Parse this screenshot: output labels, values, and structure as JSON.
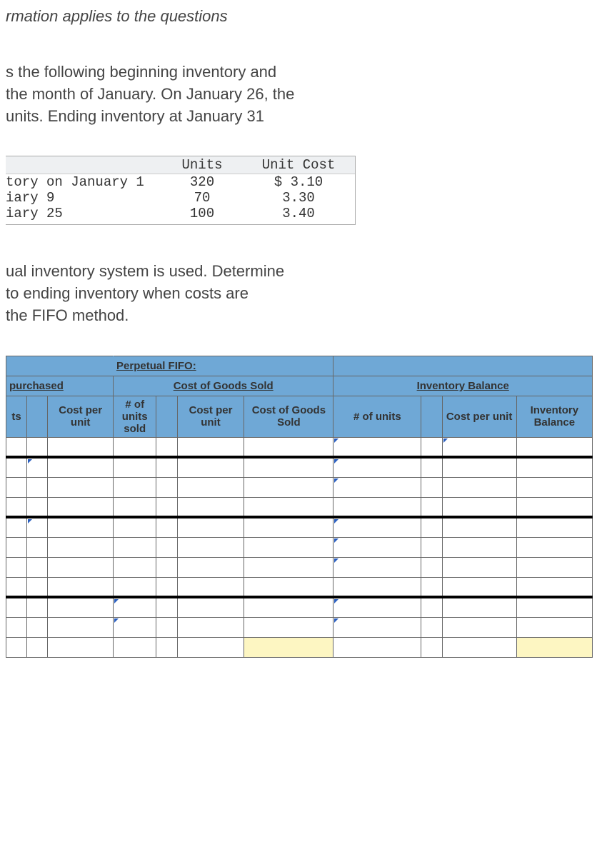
{
  "intro_italic": "rmation applies to the questions",
  "para1_line1": "s the following beginning inventory and",
  "para1_line2": "the month of January. On January 26, the",
  "para1_line3": "units. Ending inventory at January 31",
  "inventory_table": {
    "headers": {
      "units": "Units",
      "unit_cost": "Unit Cost"
    },
    "rows": [
      {
        "label": "tory on January 1",
        "units": "320",
        "unit_cost": "$ 3.10"
      },
      {
        "label": "iary 9",
        "units": "70",
        "unit_cost": "3.30"
      },
      {
        "label": "iary 25",
        "units": "100",
        "unit_cost": "3.40"
      }
    ]
  },
  "para2_line1": "ual inventory system is used. Determine",
  "para2_line2": "to ending inventory when costs are",
  "para2_line3": "the FIFO method.",
  "fifo": {
    "title": "Perpetual FIFO:",
    "section_purchased": "purchased",
    "section_cogs": "Cost of Goods Sold",
    "section_inv": "Inventory Balance",
    "col_ts": "ts",
    "col_cost_per_unit": "Cost per unit",
    "col_units_sold": "# of units sold",
    "col_cost_per_unit2": "Cost per unit",
    "col_cogs": "Cost of Goods Sold",
    "col_num_units": "# of units",
    "col_cost_per_unit3": "Cost per unit",
    "col_inv_balance": "Inventory Balance"
  },
  "colors": {
    "header_blue": "#6fa8d6",
    "input_marker": "#2a5fbf",
    "yellow_highlight": "#fdf6c2",
    "border_dark": "#666666",
    "text": "#444444"
  }
}
